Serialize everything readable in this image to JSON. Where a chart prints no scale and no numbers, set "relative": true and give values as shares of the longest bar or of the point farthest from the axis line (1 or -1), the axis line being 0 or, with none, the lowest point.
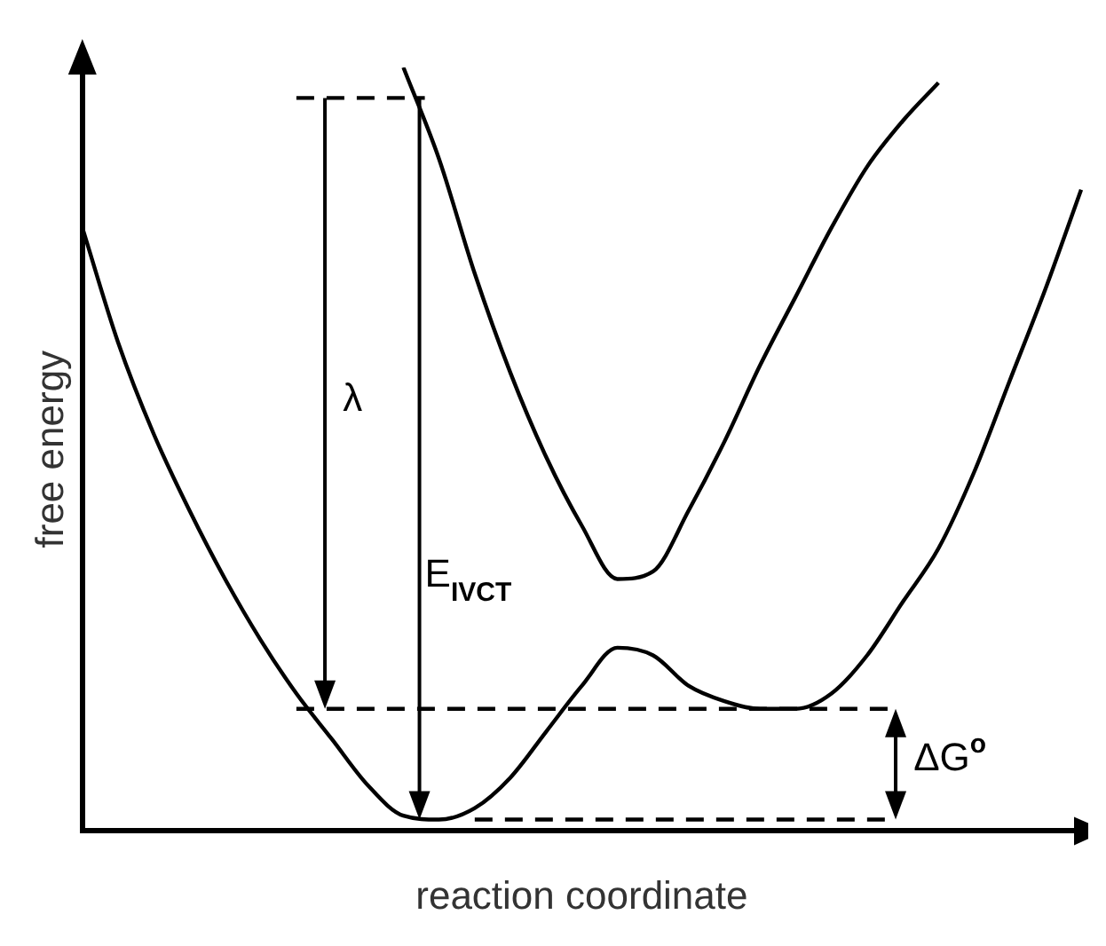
{
  "chart_data": {
    "type": "line",
    "relative": true,
    "xlabel": "reaction coordinate",
    "ylabel": "free energy",
    "categories": [
      null,
      null,
      null,
      null,
      null,
      null,
      null,
      null,
      null,
      null,
      null,
      null,
      null,
      null,
      null,
      null,
      null,
      null,
      null,
      null,
      null,
      null,
      null,
      null,
      null,
      null,
      null,
      null,
      null
    ],
    "series": [
      {
        "color": "#000000",
        "values": [
          0.79,
          0.64,
          0.52,
          0.42,
          0.33,
          0.25,
          0.18,
          0.12,
          0.06,
          0.02,
          0.015,
          0.03,
          0.07,
          0.13,
          0.19,
          0.24,
          0.23,
          0.19,
          0.17,
          0.16,
          0.16,
          0.18,
          0.23,
          0.3,
          0.37,
          0.47,
          0.59,
          0.71,
          0.84
        ]
      },
      {
        "color": "#000000",
        "values": [
          null,
          null,
          null,
          null,
          null,
          null,
          null,
          null,
          null,
          1.0,
          0.88,
          0.73,
          0.6,
          0.49,
          0.4,
          0.33,
          0.34,
          0.42,
          0.51,
          0.61,
          0.7,
          0.79,
          0.87,
          0.93,
          0.98,
          null,
          null,
          null,
          null
        ]
      }
    ],
    "ref_lines": [
      {
        "axis": "y",
        "value": 0.96,
        "color": "#000000",
        "line_style": "dashed"
      },
      {
        "axis": "y",
        "value": 0.16,
        "color": "#000000",
        "line_style": "dashed"
      },
      {
        "axis": "y",
        "value": 0.015,
        "color": "#000000",
        "line_style": "dashed"
      }
    ],
    "annotations": [
      "λ",
      "E$_{IVCT}$",
      "ΔG$^{o}$"
    ],
    "legend": false,
    "grid": false,
    "marker": "none",
    "line_style": "solid"
  }
}
